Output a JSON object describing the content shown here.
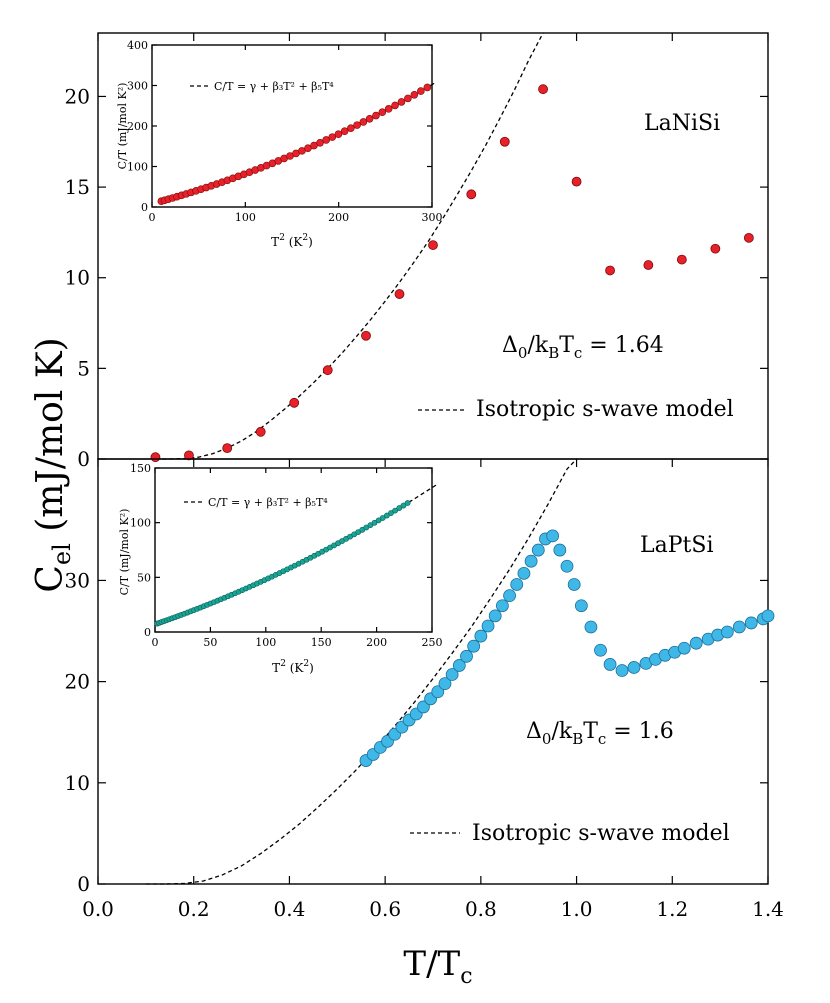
{
  "ylabel": {
    "main": "C",
    "sub": "el",
    "rest": " (mJ/mol K)"
  },
  "xlabel": {
    "main": "T/T",
    "sub": "c"
  },
  "chart_data": [
    {
      "id": "laNiSi-main",
      "type": "scatter",
      "label": "LaNiSi",
      "gap_text": {
        "lead": "Δ",
        "sub0": "0",
        "mid": "/k",
        "subB": "B",
        "t": "T",
        "subc": "c",
        "value": " = 1.64"
      },
      "legend_text": "Isotropic s-wave model",
      "marker_color": "#e8202a",
      "xlim": [
        0.0,
        1.4
      ],
      "ylim": [
        0,
        23.5
      ],
      "yticks": [
        "0",
        "5",
        "10",
        "15",
        "20"
      ],
      "points": [
        [
          0.12,
          0.1
        ],
        [
          0.19,
          0.2
        ],
        [
          0.27,
          0.6
        ],
        [
          0.34,
          1.5
        ],
        [
          0.41,
          3.1
        ],
        [
          0.48,
          4.9
        ],
        [
          0.56,
          6.8
        ],
        [
          0.63,
          9.1
        ],
        [
          0.7,
          11.8
        ],
        [
          0.78,
          14.6
        ],
        [
          0.85,
          17.5
        ],
        [
          0.93,
          20.4
        ],
        [
          1.0,
          15.3
        ],
        [
          1.07,
          10.4
        ],
        [
          1.15,
          10.7
        ],
        [
          1.22,
          11.0
        ],
        [
          1.29,
          11.6
        ],
        [
          1.36,
          12.2
        ]
      ],
      "fit": [
        [
          0.12,
          0.0
        ],
        [
          0.15,
          0.0
        ],
        [
          0.18,
          0.02
        ],
        [
          0.21,
          0.1
        ],
        [
          0.24,
          0.3
        ],
        [
          0.27,
          0.6
        ],
        [
          0.3,
          1.0
        ],
        [
          0.33,
          1.5
        ],
        [
          0.36,
          2.1
        ],
        [
          0.39,
          2.75
        ],
        [
          0.42,
          3.45
        ],
        [
          0.45,
          4.2
        ],
        [
          0.48,
          5.0
        ],
        [
          0.51,
          5.85
        ],
        [
          0.54,
          6.75
        ],
        [
          0.57,
          7.7
        ],
        [
          0.6,
          8.7
        ],
        [
          0.63,
          9.75
        ],
        [
          0.66,
          10.85
        ],
        [
          0.69,
          12.0
        ],
        [
          0.72,
          13.25
        ],
        [
          0.75,
          14.55
        ],
        [
          0.78,
          15.9
        ],
        [
          0.81,
          17.3
        ],
        [
          0.84,
          18.8
        ],
        [
          0.87,
          20.35
        ],
        [
          0.9,
          22.0
        ],
        [
          0.93,
          23.7
        ]
      ],
      "inset": {
        "xlim": [
          0,
          300
        ],
        "ylim": [
          0,
          400
        ],
        "xticks": [
          "0",
          "100",
          "200",
          "300"
        ],
        "yticks": [
          "0",
          "100",
          "200",
          "300",
          "400"
        ],
        "xlabel": {
          "main": "T",
          "sup": "2",
          "rest": " (K",
          "sup2": "2",
          "end": ")"
        },
        "ylabel": "C/T (mJ/mol K²)",
        "equation": "C/T = γ + β₃T² + β₅T⁴",
        "marker_color": "#e8202a",
        "points_range": [
          10,
          295,
          48
        ],
        "fit_coeff": [
          8,
          0.62,
          0.0012
        ]
      }
    },
    {
      "id": "laPtSi-main",
      "type": "scatter",
      "label": "LaPtSi",
      "gap_text": {
        "lead": "Δ",
        "sub0": "0",
        "mid": "/k",
        "subB": "B",
        "t": "T",
        "subc": "c",
        "value": " = 1.6"
      },
      "legend_text": "Isotropic s-wave model",
      "marker_color": "#3fb8e8",
      "xlim": [
        0.0,
        1.4
      ],
      "ylim": [
        0,
        42
      ],
      "yticks": [
        "0",
        "10",
        "20",
        "30"
      ],
      "points": [
        [
          0.56,
          12.2
        ],
        [
          0.575,
          12.8
        ],
        [
          0.59,
          13.5
        ],
        [
          0.605,
          14.1
        ],
        [
          0.62,
          14.8
        ],
        [
          0.635,
          15.5
        ],
        [
          0.65,
          16.2
        ],
        [
          0.665,
          16.8
        ],
        [
          0.68,
          17.5
        ],
        [
          0.695,
          18.3
        ],
        [
          0.71,
          19.0
        ],
        [
          0.725,
          19.8
        ],
        [
          0.74,
          20.7
        ],
        [
          0.755,
          21.6
        ],
        [
          0.77,
          22.5
        ],
        [
          0.785,
          23.5
        ],
        [
          0.8,
          24.5
        ],
        [
          0.815,
          25.5
        ],
        [
          0.83,
          26.5
        ],
        [
          0.845,
          27.5
        ],
        [
          0.86,
          28.5
        ],
        [
          0.875,
          29.6
        ],
        [
          0.89,
          30.7
        ],
        [
          0.905,
          31.9
        ],
        [
          0.92,
          33.0
        ],
        [
          0.935,
          34.1
        ],
        [
          0.95,
          34.4
        ],
        [
          0.965,
          33.0
        ],
        [
          0.98,
          31.4
        ],
        [
          0.995,
          29.6
        ],
        [
          1.01,
          27.5
        ],
        [
          1.03,
          25.4
        ],
        [
          1.05,
          23.1
        ],
        [
          1.07,
          21.7
        ],
        [
          1.095,
          21.1
        ],
        [
          1.12,
          21.4
        ],
        [
          1.145,
          21.8
        ],
        [
          1.165,
          22.2
        ],
        [
          1.185,
          22.6
        ],
        [
          1.205,
          22.9
        ],
        [
          1.225,
          23.3
        ],
        [
          1.25,
          23.8
        ],
        [
          1.275,
          24.2
        ],
        [
          1.295,
          24.6
        ],
        [
          1.315,
          24.9
        ],
        [
          1.34,
          25.4
        ],
        [
          1.365,
          25.8
        ],
        [
          1.39,
          26.2
        ],
        [
          1.4,
          26.5
        ]
      ],
      "fit": [
        [
          0.1,
          0.0
        ],
        [
          0.14,
          0.0
        ],
        [
          0.18,
          0.05
        ],
        [
          0.22,
          0.3
        ],
        [
          0.26,
          0.9
        ],
        [
          0.3,
          1.8
        ],
        [
          0.34,
          3.0
        ],
        [
          0.38,
          4.4
        ],
        [
          0.42,
          5.9
        ],
        [
          0.46,
          7.6
        ],
        [
          0.5,
          9.4
        ],
        [
          0.54,
          11.3
        ],
        [
          0.58,
          13.4
        ],
        [
          0.62,
          15.6
        ],
        [
          0.66,
          17.9
        ],
        [
          0.7,
          20.3
        ],
        [
          0.74,
          22.8
        ],
        [
          0.78,
          25.4
        ],
        [
          0.82,
          28.2
        ],
        [
          0.86,
          31.1
        ],
        [
          0.9,
          34.2
        ],
        [
          0.94,
          37.5
        ],
        [
          0.98,
          41.0
        ],
        [
          1.0,
          42.0
        ]
      ],
      "inset": {
        "xlim": [
          0,
          250
        ],
        "ylim": [
          0,
          150
        ],
        "xticks": [
          "0",
          "50",
          "100",
          "150",
          "200",
          "250"
        ],
        "yticks": [
          "0",
          "50",
          "100",
          "150"
        ],
        "xlabel": {
          "main": "T",
          "sup": "2",
          "rest": " (K",
          "sup2": "2",
          "end": ")"
        },
        "ylabel": "C/T (mJ/mol K²)",
        "equation": "C/T = γ + β₃T² + β₅T⁴",
        "marker_color": "#18a596",
        "points_range": [
          2,
          228,
          70
        ],
        "fit_coeff": [
          7,
          0.35,
          0.0006
        ]
      }
    }
  ]
}
